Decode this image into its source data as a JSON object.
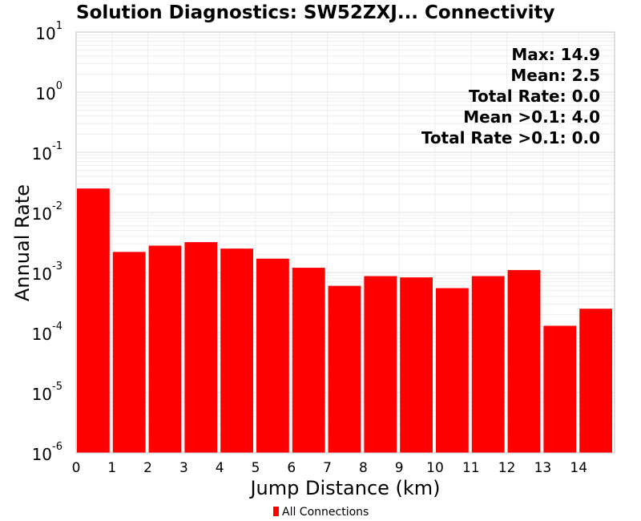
{
  "chart_data": {
    "type": "bar",
    "title": "Solution Diagnostics: SW52ZXJ... Connectivity",
    "xlabel": "Jump Distance (km)",
    "ylabel": "Annual Rate",
    "y_scale": "log",
    "ylim": [
      1e-06,
      10
    ],
    "xlim": [
      0,
      15
    ],
    "x_ticks": [
      "0",
      "1",
      "2",
      "3",
      "4",
      "5",
      "6",
      "7",
      "8",
      "9",
      "10",
      "11",
      "12",
      "13",
      "14"
    ],
    "y_ticks": [
      {
        "base": "10",
        "exp": "-6"
      },
      {
        "base": "10",
        "exp": "-5"
      },
      {
        "base": "10",
        "exp": "-4"
      },
      {
        "base": "10",
        "exp": "-3"
      },
      {
        "base": "10",
        "exp": "-2"
      },
      {
        "base": "10",
        "exp": "-1"
      },
      {
        "base": "10",
        "exp": "0"
      },
      {
        "base": "10",
        "exp": "1"
      }
    ],
    "bar_color": "#ff0000",
    "grid": true,
    "legend_position": "bottom-center",
    "series": [
      {
        "name": "All Connections",
        "bins": [
          {
            "x0": 0,
            "x1": 1,
            "value": 0.025
          },
          {
            "x0": 1,
            "x1": 2,
            "value": 0.0022
          },
          {
            "x0": 2,
            "x1": 3,
            "value": 0.0028
          },
          {
            "x0": 3,
            "x1": 4,
            "value": 0.0032
          },
          {
            "x0": 4,
            "x1": 5,
            "value": 0.0025
          },
          {
            "x0": 5,
            "x1": 6,
            "value": 0.0017
          },
          {
            "x0": 6,
            "x1": 7,
            "value": 0.0012
          },
          {
            "x0": 7,
            "x1": 8,
            "value": 0.0006
          },
          {
            "x0": 8,
            "x1": 9,
            "value": 0.00087
          },
          {
            "x0": 9,
            "x1": 10,
            "value": 0.00083
          },
          {
            "x0": 10,
            "x1": 11,
            "value": 0.00055
          },
          {
            "x0": 11,
            "x1": 12,
            "value": 0.00087
          },
          {
            "x0": 12,
            "x1": 13,
            "value": 0.0011
          },
          {
            "x0": 13,
            "x1": 14,
            "value": 0.00013
          },
          {
            "x0": 14,
            "x1": 15,
            "value": 0.00025
          }
        ]
      }
    ],
    "annotations": [
      "Max: 14.9",
      "Mean: 2.5",
      "Total Rate: 0.0",
      "Mean >0.1: 4.0",
      "Total Rate >0.1: 0.0"
    ]
  }
}
